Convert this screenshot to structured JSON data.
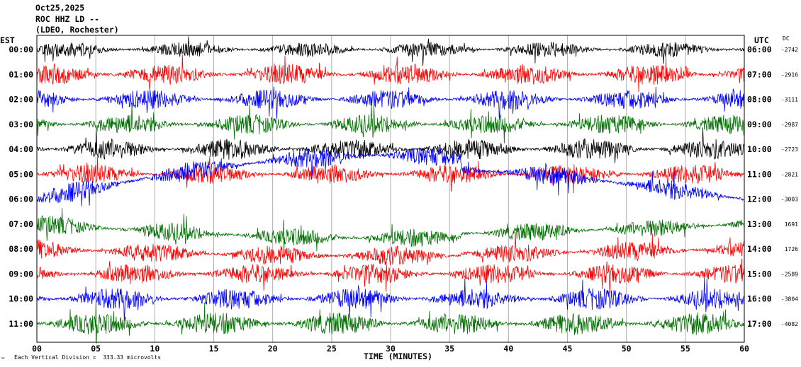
{
  "header": {
    "date": "Oct25,2025",
    "station": "ROC HHZ LD --",
    "network": "(LDEO, Rochester)"
  },
  "footer": {
    "scale_note": "Each Vertical Division =  333.33 microvolts",
    "logo_glyph": "✂"
  },
  "chart_data": {
    "type": "line",
    "title": "",
    "xlabel": "TIME (MINUTES)",
    "ylabel_left": "EST",
    "ylabel_right": "UTC",
    "dc_header": "DC",
    "xlim": [
      0,
      60
    ],
    "x_ticks": [
      "00",
      "05",
      "10",
      "15",
      "20",
      "25",
      "30",
      "35",
      "40",
      "45",
      "50",
      "55",
      "60"
    ],
    "grid_minutes": [
      0,
      5,
      10,
      15,
      20,
      25,
      30,
      35,
      40,
      45,
      50,
      55,
      60
    ],
    "traces": [
      {
        "est": "00:00",
        "utc": "06:00",
        "dc": "-2742",
        "color": "#000000",
        "amp": 11,
        "drift": 0
      },
      {
        "est": "01:00",
        "utc": "07:00",
        "dc": "-2916",
        "color": "#ff0000",
        "amp": 15,
        "drift": 0
      },
      {
        "est": "02:00",
        "utc": "08:00",
        "dc": "-3111",
        "color": "#0000ff",
        "amp": 14,
        "drift": 0
      },
      {
        "est": "03:00",
        "utc": "09:00",
        "dc": "-2987",
        "color": "#007000",
        "amp": 14,
        "drift": 0
      },
      {
        "est": "04:00",
        "utc": "10:00",
        "dc": "-2723",
        "color": "#000000",
        "amp": 15,
        "drift": 0
      },
      {
        "est": "05:00",
        "utc": "11:00",
        "dc": "-2821",
        "color": "#ff0000",
        "amp": 14,
        "drift": 0
      },
      {
        "est": "06:00",
        "utc": "12:00",
        "dc": "-3003",
        "color": "#0000ff",
        "amp": 14,
        "drift": 62
      },
      {
        "est": "07:00",
        "utc": "13:00",
        "dc": "1691",
        "color": "#007000",
        "amp": 13,
        "drift": -20
      },
      {
        "est": "08:00",
        "utc": "14:00",
        "dc": "1726",
        "color": "#ff0000",
        "amp": 14,
        "drift": -10
      },
      {
        "est": "09:00",
        "utc": "15:00",
        "dc": "-2589",
        "color": "#ff0000",
        "amp": 14,
        "drift": 0
      },
      {
        "est": "10:00",
        "utc": "16:00",
        "dc": "-3804",
        "color": "#0000ff",
        "amp": 15,
        "drift": 0
      },
      {
        "est": "11:00",
        "utc": "17:00",
        "dc": "-4082",
        "color": "#007000",
        "amp": 16,
        "drift": 0
      }
    ]
  }
}
